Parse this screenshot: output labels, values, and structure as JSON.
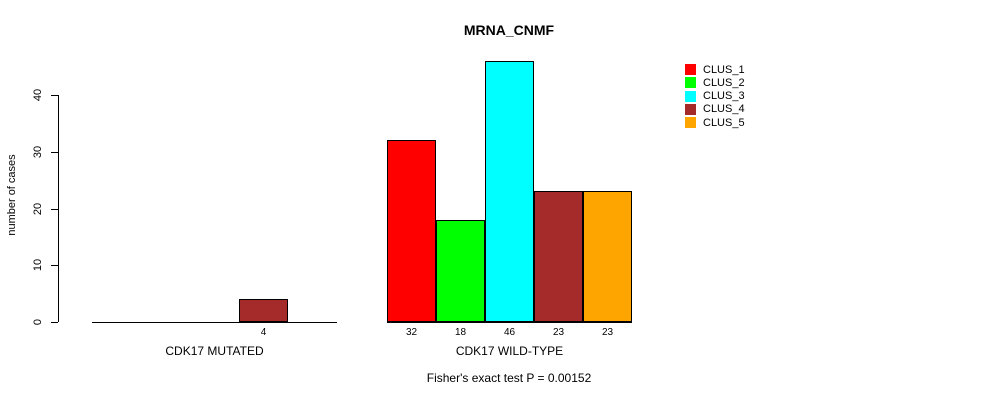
{
  "chart_data": {
    "type": "bar",
    "title": "MRNA_CNMF",
    "xlabel": "",
    "ylabel": "number of cases",
    "ylim": [
      0,
      46
    ],
    "y_ticks": [
      0,
      10,
      20,
      30,
      40
    ],
    "grid": false,
    "legend_position": "top-right",
    "legend_entries": [
      "CLUS_1",
      "CLUS_2",
      "CLUS_3",
      "CLUS_4",
      "CLUS_5"
    ],
    "categories": [
      "CDK17 MUTATED",
      "CDK17 WILD-TYPE"
    ],
    "series": [
      {
        "name": "CLUS_1",
        "color": "#FF0000",
        "values": [
          0,
          32
        ]
      },
      {
        "name": "CLUS_2",
        "color": "#00FF00",
        "values": [
          0,
          18
        ]
      },
      {
        "name": "CLUS_3",
        "color": "#00FFFF",
        "values": [
          0,
          46
        ]
      },
      {
        "name": "CLUS_4",
        "color": "#A52A2A",
        "values": [
          4,
          23
        ]
      },
      {
        "name": "CLUS_5",
        "color": "#FFA500",
        "values": [
          0,
          23
        ]
      }
    ],
    "value_labels_shown": {
      "CDK17 MUTATED": [
        "4"
      ],
      "CDK17 WILD-TYPE": [
        "32",
        "18",
        "46",
        "23",
        "23"
      ]
    },
    "annotation": "Fisher's exact test P = 0.00152"
  }
}
